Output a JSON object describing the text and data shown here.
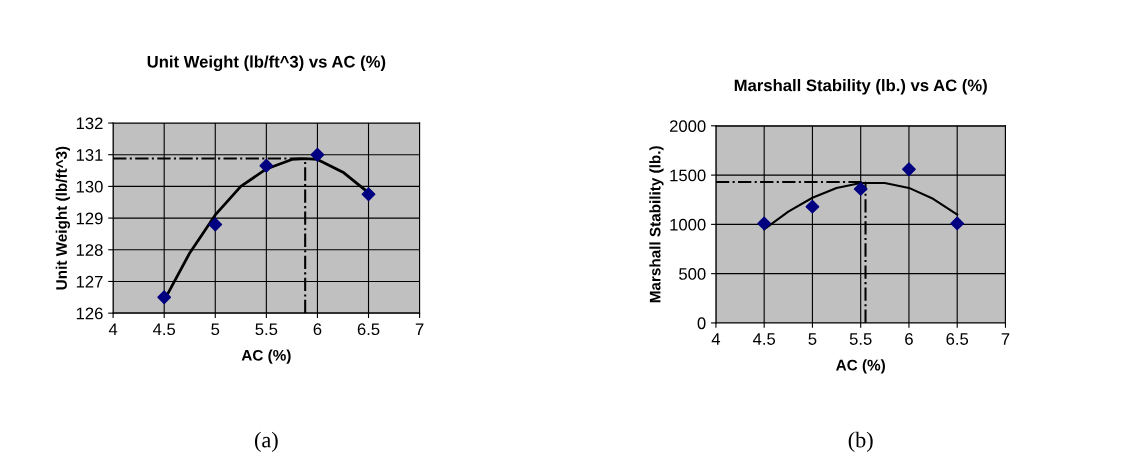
{
  "chart_data": [
    {
      "type": "scatter",
      "title": "Unit Weight (lb/ft^3) vs AC (%)",
      "xlabel": "AC (%)",
      "ylabel": "Unit Weight (lb/ft^3)",
      "series": [
        {
          "color": "#000080",
          "marker": "diamond",
          "x": [
            4.5,
            5,
            5.5,
            6,
            6.5
          ],
          "values": [
            126.5,
            128.8,
            130.65,
            131.0,
            129.75
          ]
        },
        {
          "type": "line",
          "color": "#000000",
          "marker": "none",
          "x": [
            4.5,
            4.75,
            5,
            5.25,
            5.5,
            5.75,
            5.88,
            6,
            6.25,
            6.5
          ],
          "values": [
            126.4,
            127.9,
            129.1,
            130.0,
            130.55,
            130.85,
            130.88,
            130.85,
            130.45,
            129.8
          ]
        }
      ],
      "xlim": [
        4,
        7
      ],
      "xticks": [
        4,
        4.5,
        5,
        5.5,
        6,
        6.5,
        7
      ],
      "ylim": [
        126,
        132
      ],
      "yticks": [
        126,
        127,
        128,
        129,
        130,
        131,
        132
      ],
      "grid": true,
      "ref_lines": [
        {
          "axis": "y",
          "value": 130.88,
          "color": "#000000",
          "line_style": "dashed"
        },
        {
          "axis": "x",
          "value": 5.88,
          "color": "#000000",
          "line_style": "dashed"
        }
      ],
      "annotations": [
        "(a)"
      ]
    },
    {
      "type": "scatter",
      "title": "Marshall Stability (lb.) vs AC (%)",
      "xlabel": "AC (%)",
      "ylabel": "Marshall Stability (lb.)",
      "series": [
        {
          "color": "#000080",
          "marker": "diamond",
          "x": [
            4.5,
            5,
            5.5,
            6,
            6.5
          ],
          "values": [
            1010,
            1180,
            1360,
            1560,
            1010
          ]
        },
        {
          "type": "line",
          "color": "#000000",
          "marker": "none",
          "x": [
            4.5,
            4.75,
            5,
            5.25,
            5.5,
            5.75,
            6,
            6.25,
            6.5
          ],
          "values": [
            950,
            1130,
            1270,
            1370,
            1420,
            1420,
            1370,
            1260,
            1100
          ]
        }
      ],
      "xlim": [
        4,
        7
      ],
      "xticks": [
        4,
        4.5,
        5,
        5.5,
        6,
        6.5,
        7
      ],
      "ylim": [
        0,
        2000
      ],
      "yticks": [
        0,
        500,
        1000,
        1500,
        2000
      ],
      "grid": true,
      "ref_lines": [
        {
          "axis": "y",
          "value": 1430,
          "color": "#000000",
          "line_style": "dashed"
        },
        {
          "axis": "x",
          "value": 5.55,
          "color": "#000000",
          "line_style": "dashed"
        }
      ],
      "annotations": [
        "(b)"
      ]
    }
  ]
}
